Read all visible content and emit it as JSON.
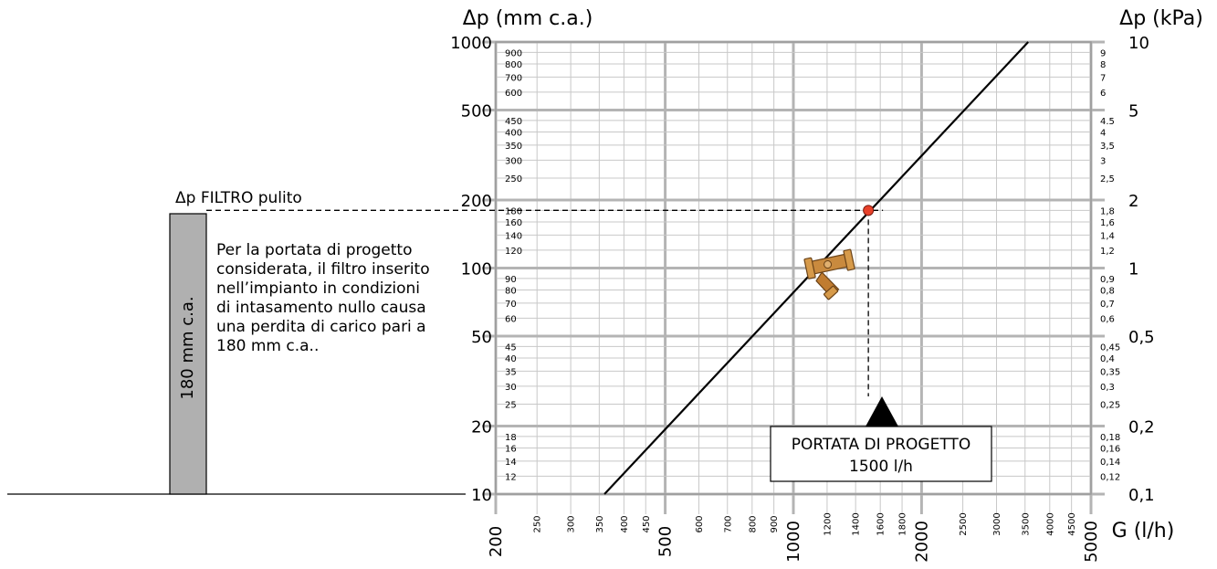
{
  "chart_data": {
    "type": "line",
    "x_scale": "log",
    "y_scale": "log",
    "xlabel": "G (l/h)",
    "ylabel_left": "Δp (mm c.a.)",
    "ylabel_right": "Δp (kPa)",
    "xlim": [
      200,
      5000
    ],
    "ylim": [
      10,
      1000
    ],
    "grid": true,
    "x_ticks_major": [
      "200",
      "500",
      "1000",
      "2000",
      "5000"
    ],
    "x_ticks_minor": [
      "250",
      "300",
      "350",
      "400",
      "450",
      "600",
      "700",
      "800",
      "900",
      "1200",
      "1400",
      "1600",
      "1800",
      "2500",
      "3000",
      "3500",
      "4000",
      "4500"
    ],
    "y_ticks_major_left": [
      "1000",
      "500",
      "200",
      "100",
      "50",
      "20",
      "10"
    ],
    "y_ticks_minor_left": [
      "900",
      "800",
      "700",
      "600",
      "450",
      "400",
      "350",
      "300",
      "250",
      "180",
      "160",
      "140",
      "120",
      "90",
      "80",
      "70",
      "60",
      "45",
      "40",
      "35",
      "30",
      "25",
      "18",
      "16",
      "14",
      "12"
    ],
    "y_ticks_major_right": [
      "10",
      "5",
      "2",
      "1",
      "0,5",
      "0,2",
      "0,1"
    ],
    "y_ticks_minor_right": [
      "9",
      "8",
      "7",
      "6",
      "4.5",
      "4",
      "3,5",
      "3",
      "2,5",
      "1,8",
      "1,6",
      "1,4",
      "1,2",
      "0,9",
      "0,8",
      "0,7",
      "0,6",
      "0,45",
      "0,4",
      "0,35",
      "0,3",
      "0,25",
      "0,18",
      "0,16",
      "0,14",
      "0,12"
    ],
    "series": [
      {
        "x": [
          360,
          3560
        ],
        "y": [
          10,
          1000
        ]
      }
    ],
    "design_point": {
      "x": 1500,
      "y": 180
    },
    "colors": {
      "line": "#000000",
      "point": "#e8412a",
      "bar": "#b0b0b0",
      "valve": "#c98a3e"
    }
  },
  "annotations": {
    "bar_title": "Δp FILTRO pulito",
    "bar_label": "180 mm c.a.",
    "description": [
      "Per la portata di progetto",
      "considerata, il filtro inserito",
      "nell’impianto in condizioni",
      "di intasamento nullo causa",
      "una perdita di carico pari a",
      "180 mm c.a.."
    ],
    "callout_line1": "PORTATA DI PROGETTO",
    "callout_line2": "1500 l/h"
  },
  "icons": {
    "valve": "y-strainer-valve-icon"
  }
}
